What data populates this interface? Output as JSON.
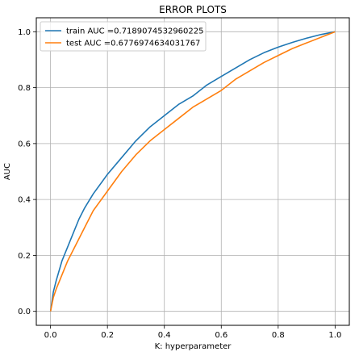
{
  "chart_data": {
    "type": "line",
    "title": "ERROR PLOTS",
    "xlabel": "K: hyperparameter",
    "ylabel": "AUC",
    "xlim": [
      -0.05,
      1.05
    ],
    "ylim": [
      -0.05,
      1.05
    ],
    "xticks": [
      0.0,
      0.2,
      0.4,
      0.6,
      0.8,
      1.0
    ],
    "yticks": [
      0.0,
      0.2,
      0.4,
      0.6,
      0.8,
      1.0
    ],
    "xtick_labels": [
      "0.0",
      "0.2",
      "0.4",
      "0.6",
      "0.8",
      "1.0"
    ],
    "ytick_labels": [
      "0.0",
      "0.2",
      "0.4",
      "0.6",
      "0.8",
      "1.0"
    ],
    "grid": true,
    "legend_position": "top-left",
    "series": [
      {
        "name": "train AUC =0.7189074532960225",
        "color": "#1f77b4",
        "x": [
          0.0,
          0.01,
          0.02,
          0.04,
          0.06,
          0.08,
          0.1,
          0.12,
          0.15,
          0.2,
          0.25,
          0.3,
          0.35,
          0.4,
          0.45,
          0.5,
          0.55,
          0.6,
          0.65,
          0.7,
          0.75,
          0.8,
          0.85,
          0.9,
          0.95,
          1.0
        ],
        "y": [
          0.0,
          0.07,
          0.11,
          0.18,
          0.23,
          0.28,
          0.33,
          0.37,
          0.42,
          0.49,
          0.55,
          0.61,
          0.66,
          0.7,
          0.74,
          0.77,
          0.81,
          0.84,
          0.87,
          0.9,
          0.925,
          0.945,
          0.962,
          0.977,
          0.99,
          1.0
        ]
      },
      {
        "name": "test AUC =0.6776974634031767",
        "color": "#ff7f0e",
        "x": [
          0.0,
          0.01,
          0.02,
          0.04,
          0.06,
          0.08,
          0.1,
          0.12,
          0.15,
          0.2,
          0.25,
          0.3,
          0.35,
          0.4,
          0.45,
          0.5,
          0.55,
          0.6,
          0.65,
          0.7,
          0.75,
          0.8,
          0.85,
          0.9,
          0.95,
          1.0
        ],
        "y": [
          0.0,
          0.05,
          0.08,
          0.13,
          0.18,
          0.22,
          0.26,
          0.3,
          0.36,
          0.43,
          0.5,
          0.56,
          0.61,
          0.65,
          0.69,
          0.73,
          0.76,
          0.79,
          0.83,
          0.86,
          0.89,
          0.915,
          0.94,
          0.96,
          0.98,
          1.0
        ]
      }
    ]
  }
}
